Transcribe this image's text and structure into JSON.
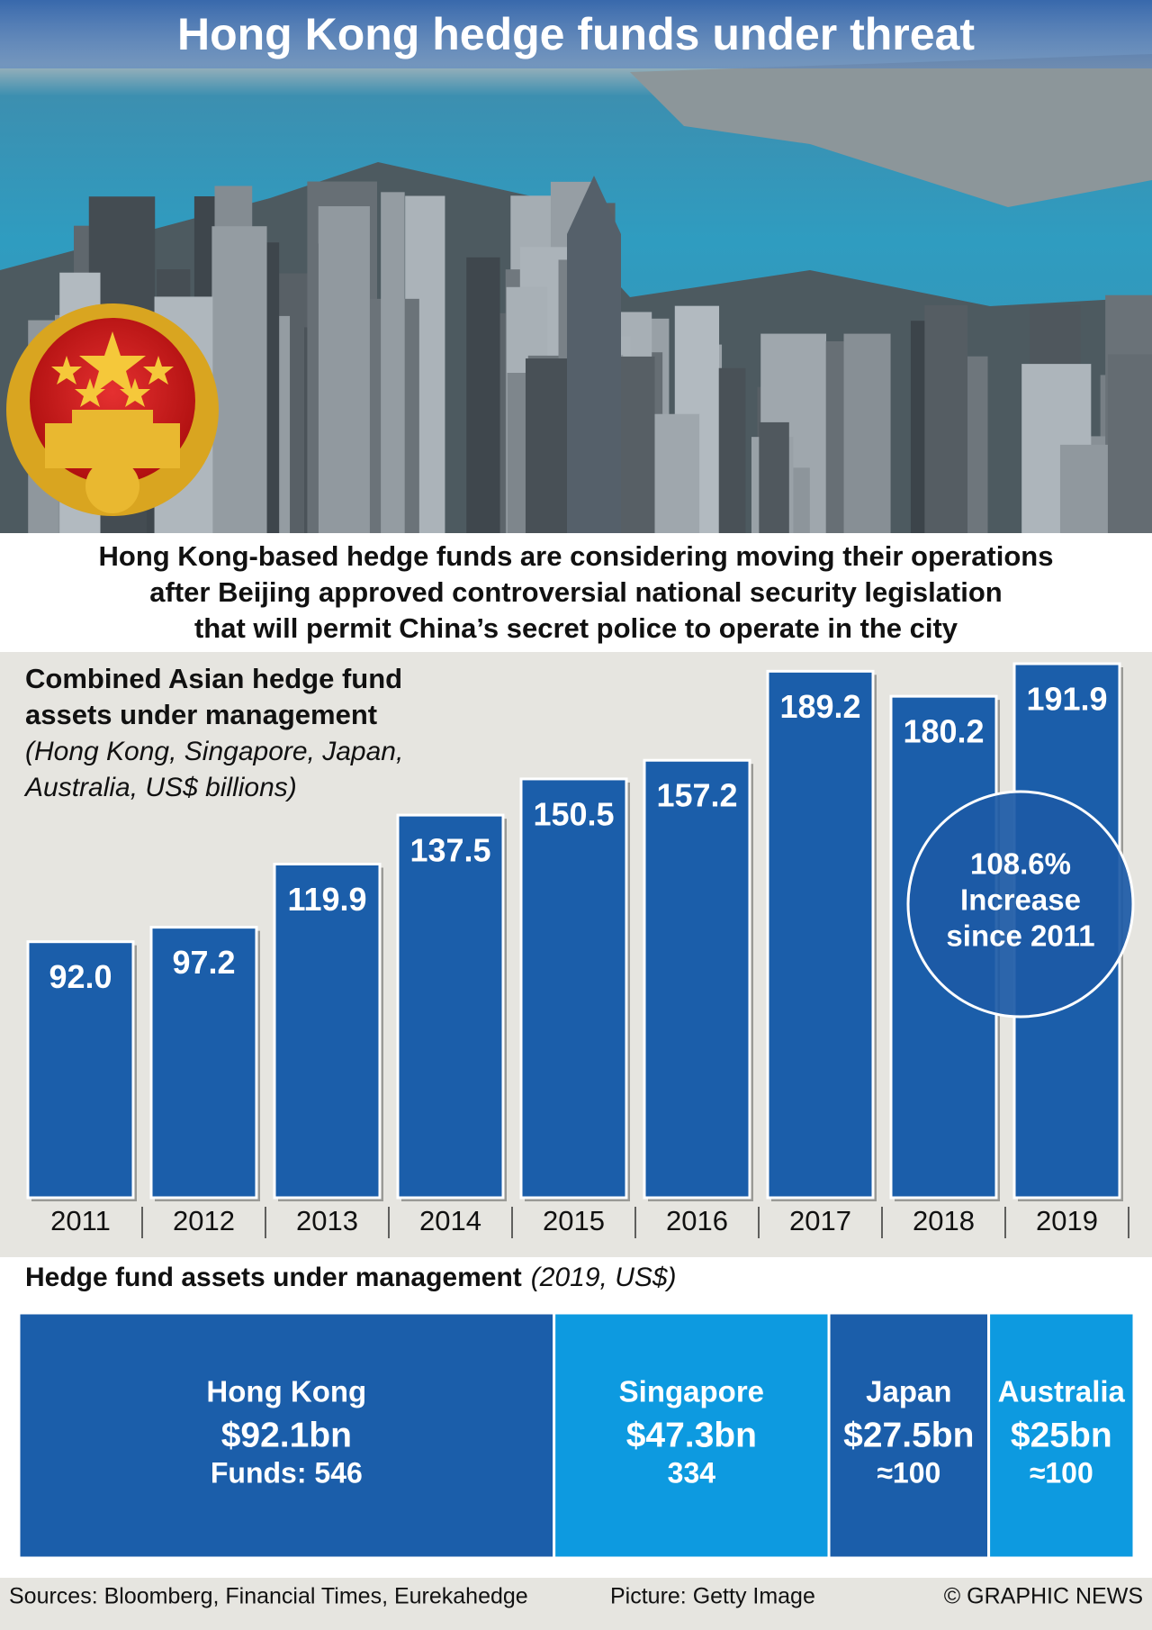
{
  "title": "Hong Kong hedge funds under threat",
  "intro": [
    "Hong Kong-based hedge funds are considering moving their operations",
    "after Beijing approved controversial national security legislation",
    "that will permit China’s secret police to operate in the city"
  ],
  "chart_data": [
    {
      "type": "bar",
      "title": [
        "Combined Asian hedge fund",
        "assets under management"
      ],
      "subtitle": [
        "(Hong Kong, Singapore, Japan,",
        "Australia, US$ billions)"
      ],
      "categories": [
        "2011",
        "2012",
        "2013",
        "2014",
        "2015",
        "2016",
        "2017",
        "2018",
        "2019"
      ],
      "values": [
        92.0,
        97.2,
        119.9,
        137.5,
        150.5,
        157.2,
        189.2,
        180.2,
        191.9
      ],
      "value_labels": [
        "92.0",
        "97.2",
        "119.9",
        "137.5",
        "150.5",
        "157.2",
        "189.2",
        "180.2",
        "191.9"
      ],
      "color": "#1b5eaa",
      "annotation": [
        "108.6%",
        "Increase",
        "since 2011"
      ]
    },
    {
      "type": "treemap",
      "title": "Hedge fund assets under management",
      "subtitle": "(2019, US$)",
      "categories": [
        "Hong Kong",
        "Singapore",
        "Japan",
        "Australia"
      ],
      "values": [
        92.1,
        47.3,
        27.5,
        25
      ],
      "value_labels": [
        "$92.1bn",
        "$47.3bn",
        "$27.5bn",
        "$25bn"
      ],
      "fund_labels": [
        "Funds: 546",
        "334",
        "≈100",
        "≈100"
      ],
      "colors": [
        "#1b5eaa",
        "#0d9ae0",
        "#1b5eaa",
        "#0d9ae0"
      ]
    }
  ],
  "footer": {
    "sources": "Sources: Bloomberg, Financial Times, Eurekahedge",
    "picture": "Picture: Getty Image",
    "credit": "© GRAPHIC NEWS"
  }
}
